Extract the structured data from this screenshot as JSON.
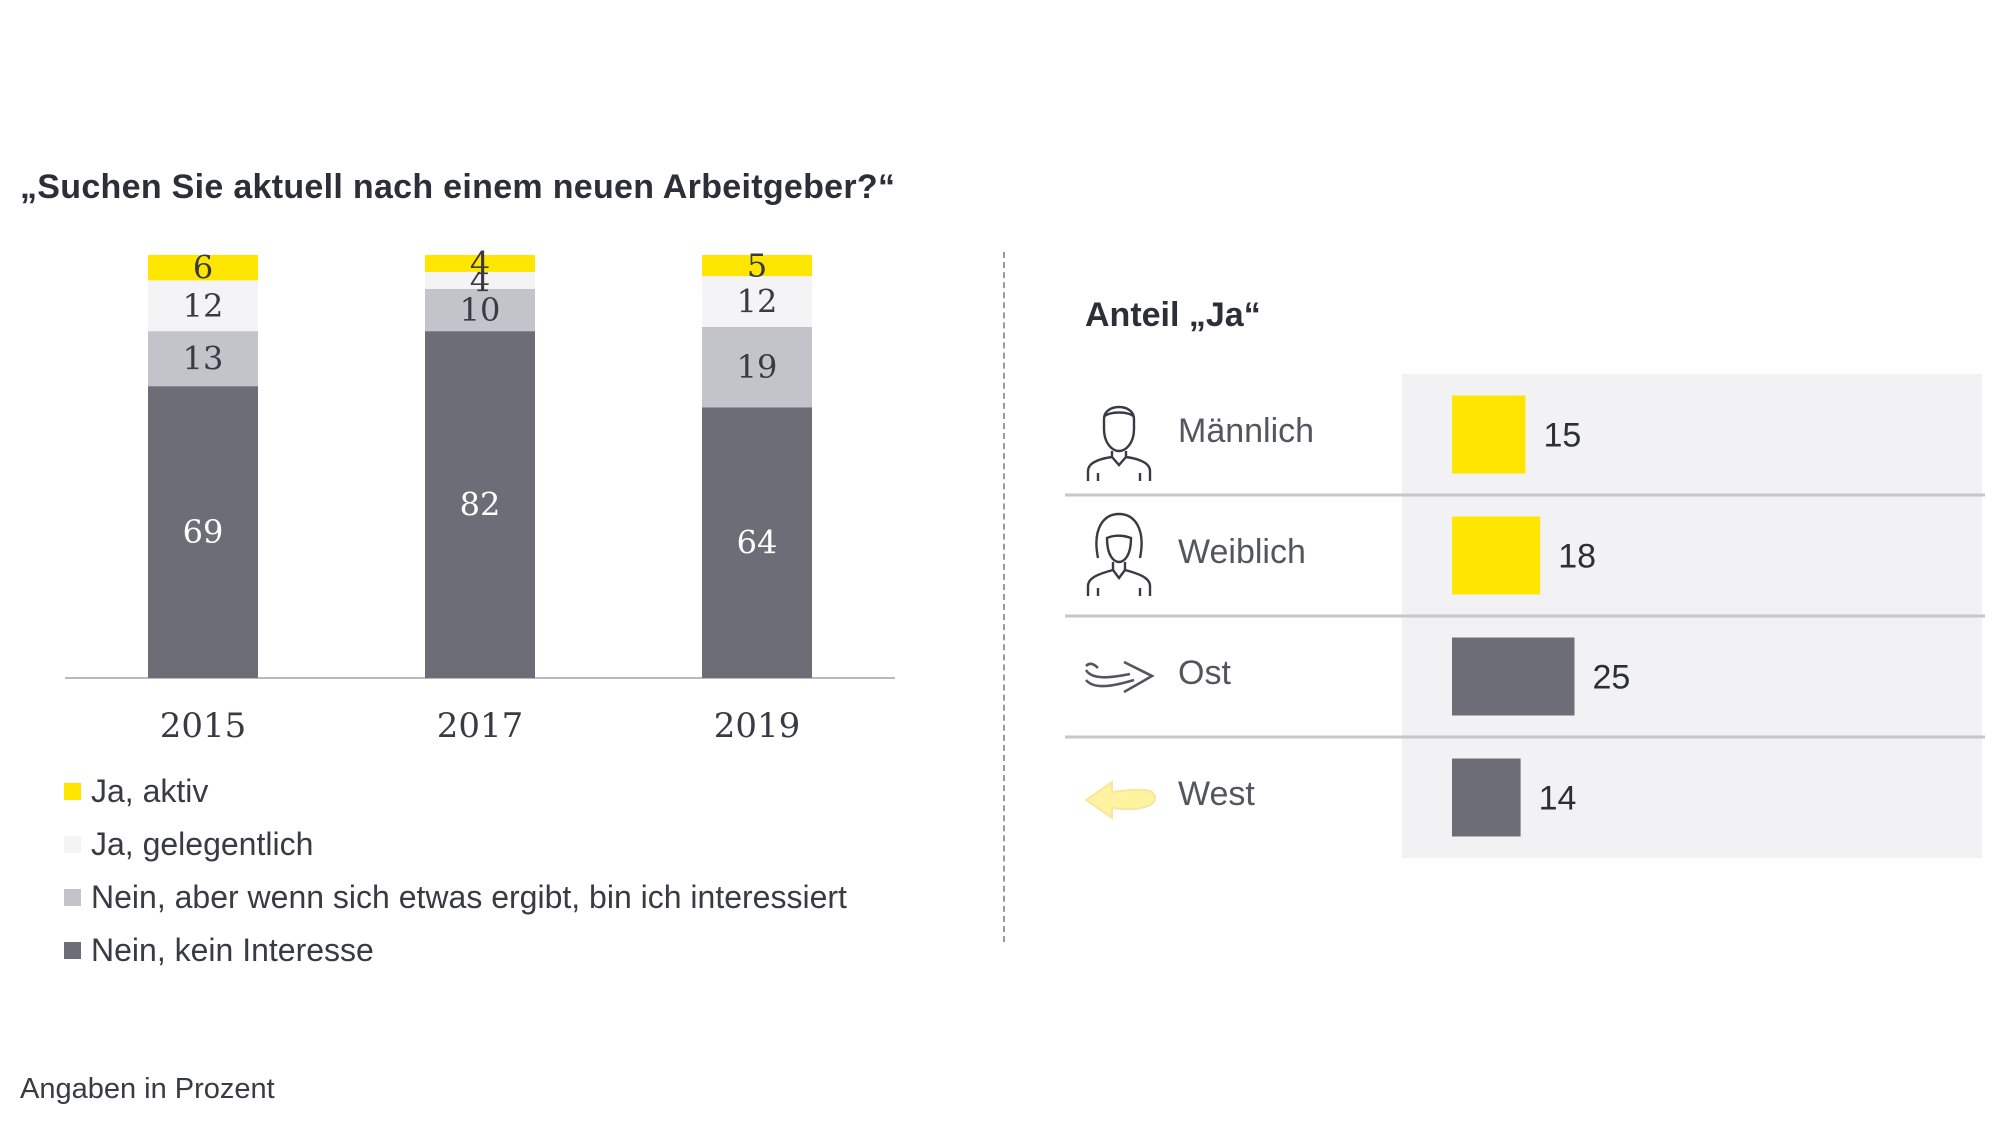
{
  "title": "„Suchen Sie aktuell nach einem neuen Arbeitgeber?“",
  "footnote": "Angaben in Prozent",
  "chart_data": [
    {
      "type": "bar",
      "stacked": true,
      "categories": [
        "2015",
        "2017",
        "2019"
      ],
      "series": [
        {
          "name": "Nein, kein Interesse",
          "values": [
            69,
            82,
            64
          ],
          "color": "#6d6d78"
        },
        {
          "name": "Nein, aber wenn sich etwas ergibt, bin ich interessiert",
          "values": [
            13,
            10,
            19
          ],
          "color": "#c3c3ca"
        },
        {
          "name": "Ja, gelegentlich",
          "values": [
            12,
            4,
            12
          ],
          "color": "#f4f4f6"
        },
        {
          "name": "Ja, aktiv",
          "values": [
            6,
            4,
            5
          ],
          "color": "#ffe600"
        }
      ],
      "legend": [
        {
          "label": "Ja, aktiv",
          "color": "#ffe600"
        },
        {
          "label": "Ja, gelegentlich",
          "color": "#f4f4f6"
        },
        {
          "label": "Nein, aber wenn sich etwas ergibt, bin ich interessiert",
          "color": "#c3c3ca"
        },
        {
          "label": "Nein, kein Interesse",
          "color": "#6d6d78"
        }
      ],
      "ylim": [
        0,
        100
      ],
      "legend_position": "bottom-left"
    },
    {
      "type": "bar",
      "orientation": "horizontal",
      "title": "Anteil „Ja“",
      "categories": [
        "Männlich",
        "Weiblich",
        "Ost",
        "West"
      ],
      "values": [
        15,
        18,
        25,
        14
      ],
      "colors": [
        "#ffe600",
        "#ffe600",
        "#6d6d78",
        "#6d6d78"
      ],
      "icons": [
        "male-person-icon",
        "female-person-icon",
        "arrow-east-icon",
        "arrow-west-icon"
      ]
    }
  ]
}
